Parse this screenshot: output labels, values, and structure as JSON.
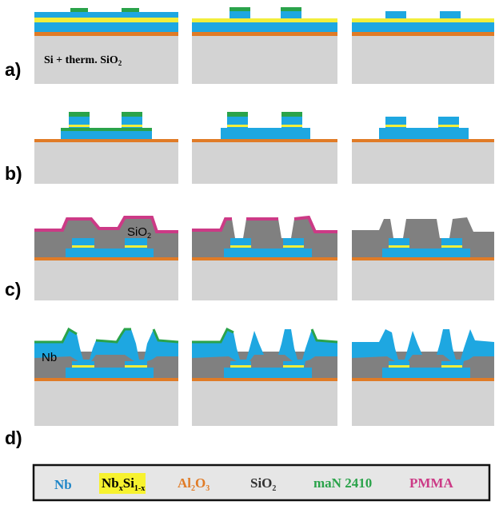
{
  "colors": {
    "nb": "#1ea7e1",
    "nbsi": "#f2ee3a",
    "al2o3": "#e07b26",
    "sio2_layer": "#808080",
    "substrate": "#d3d3d3",
    "man": "#2aa34a",
    "pmma": "#cc3a86",
    "legend_bg": "#e6e6e6",
    "nbsi_highlight": "#f7f22f"
  },
  "rows": [
    {
      "id": "a",
      "label": "a)",
      "annotation": {
        "main": "Si + therm. SiO",
        "sub": "2"
      }
    },
    {
      "id": "b",
      "label": "b)"
    },
    {
      "id": "c",
      "label": "c)",
      "annotation": {
        "main": "SiO",
        "sub": "2"
      }
    },
    {
      "id": "d",
      "label": "d)",
      "annotation": {
        "main": "Nb",
        "sub": ""
      }
    }
  ],
  "legend": [
    {
      "id": "nb",
      "main": "Nb",
      "sub": "",
      "color": "#1e86c8"
    },
    {
      "id": "nbsi",
      "main": "Nb",
      "sub": "x",
      "main2": "Si",
      "sub2": "1-x",
      "color": "#000000"
    },
    {
      "id": "al2o3",
      "main": "Al",
      "sub": "2",
      "main2": "O",
      "sub2": "3",
      "color": "#e07b26"
    },
    {
      "id": "sio2",
      "main": "SiO",
      "sub": "2",
      "color": "#333333"
    },
    {
      "id": "man",
      "main": "maN 2410",
      "sub": "",
      "color": "#2aa34a"
    },
    {
      "id": "pmma",
      "main": "PMMA",
      "sub": "",
      "color": "#cc3a86"
    }
  ]
}
